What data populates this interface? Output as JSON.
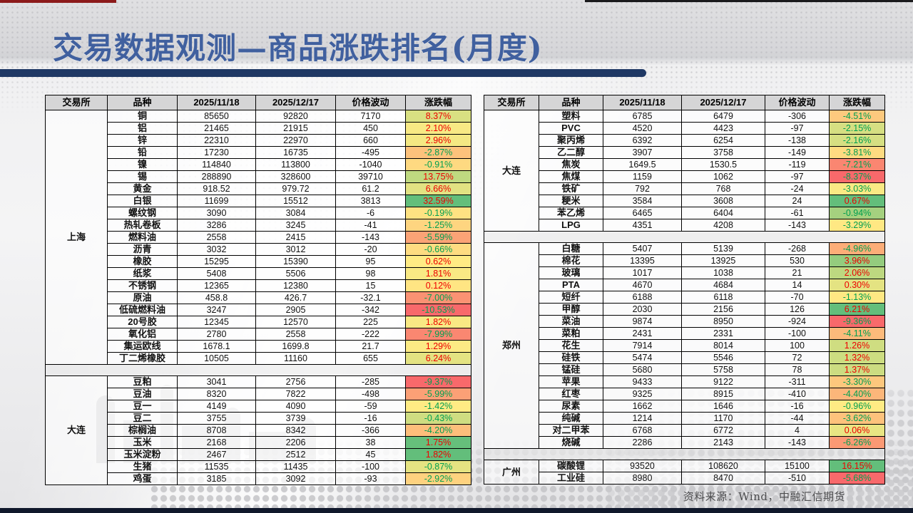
{
  "title": "交易数据观测—商品涨跌排名(月度)",
  "source_note": "资料来源：Wind，中融汇信期货",
  "colors": {
    "title_text": "#40609f",
    "title_bar": "#1f3864",
    "header_bg": "#d5d5d6",
    "scale_min_red": "#F8696B",
    "scale_mid_yellow": "#FFEB84",
    "scale_max_green": "#63BE7B",
    "up_text": "#ee0000",
    "down_text": "#00a050",
    "top_red_strip": "#8c1a1a",
    "top_black_strip": "#1b1b1d",
    "bottom_strip": "#10182b"
  },
  "tables": [
    {
      "name": "left-table",
      "headers": [
        "交易所",
        "品种",
        "2025/11/18",
        "2025/12/17",
        "价格波动",
        "涨跌幅"
      ],
      "sections": [
        {
          "exchange": "上海",
          "rows": [
            [
              "铜",
              "85650",
              "92820",
              "7170",
              "8.37%"
            ],
            [
              "铝",
              "21465",
              "21915",
              "450",
              "2.10%"
            ],
            [
              "锌",
              "22310",
              "22970",
              "660",
              "2.96%"
            ],
            [
              "铅",
              "17230",
              "16735",
              "-495",
              "-2.87%"
            ],
            [
              "镍",
              "114840",
              "113800",
              "-1040",
              "-0.91%"
            ],
            [
              "锡",
              "288890",
              "328600",
              "39710",
              "13.75%"
            ],
            [
              "黄金",
              "918.52",
              "979.72",
              "61.2",
              "6.66%"
            ],
            [
              "白银",
              "11699",
              "15512",
              "3813",
              "32.59%"
            ],
            [
              "螺纹钢",
              "3090",
              "3084",
              "-6",
              "-0.19%"
            ],
            [
              "热轧卷板",
              "3286",
              "3245",
              "-41",
              "-1.25%"
            ],
            [
              "燃料油",
              "2558",
              "2415",
              "-143",
              "-5.59%"
            ],
            [
              "沥青",
              "3032",
              "3012",
              "-20",
              "-0.66%"
            ],
            [
              "橡胶",
              "15295",
              "15390",
              "95",
              "0.62%"
            ],
            [
              "纸浆",
              "5408",
              "5506",
              "98",
              "1.81%"
            ],
            [
              "不锈钢",
              "12365",
              "12380",
              "15",
              "0.12%"
            ],
            [
              "原油",
              "458.8",
              "426.7",
              "-32.1",
              "-7.00%"
            ],
            [
              "低硫燃料油",
              "3247",
              "2905",
              "-342",
              "-10.53%"
            ],
            [
              "20号胶",
              "12345",
              "12570",
              "225",
              "1.82%"
            ],
            [
              "氧化铝",
              "2780",
              "2558",
              "-222",
              "-7.99%"
            ],
            [
              "集运欧线",
              "1678.1",
              "1699.8",
              "21.7",
              "1.29%"
            ],
            [
              "丁二烯橡胶",
              "10505",
              "11160",
              "655",
              "6.24%"
            ]
          ]
        },
        {
          "exchange": "大连",
          "rows": [
            [
              "豆粕",
              "3041",
              "2756",
              "-285",
              "-9.37%"
            ],
            [
              "豆油",
              "8320",
              "7822",
              "-498",
              "-5.99%"
            ],
            [
              "豆一",
              "4149",
              "4090",
              "-59",
              "-1.42%"
            ],
            [
              "豆二",
              "3755",
              "3739",
              "-16",
              "-0.43%"
            ],
            [
              "棕榈油",
              "8708",
              "8342",
              "-366",
              "-4.20%"
            ],
            [
              "玉米",
              "2168",
              "2206",
              "38",
              "1.75%"
            ],
            [
              "玉米淀粉",
              "2467",
              "2512",
              "45",
              "1.82%"
            ],
            [
              "生猪",
              "11535",
              "11435",
              "-100",
              "-0.87%"
            ],
            [
              "鸡蛋",
              "3185",
              "3092",
              "-93",
              "-2.92%"
            ]
          ]
        }
      ]
    },
    {
      "name": "right-table",
      "headers": [
        "交易所",
        "品种",
        "2025/11/18",
        "2025/12/17",
        "价格波动",
        "涨跌幅"
      ],
      "sections": [
        {
          "exchange": "大连",
          "rows": [
            [
              "塑料",
              "6785",
              "6479",
              "-306",
              "-4.51%"
            ],
            [
              "PVC",
              "4520",
              "4423",
              "-97",
              "-2.15%"
            ],
            [
              "聚丙烯",
              "6392",
              "6254",
              "-138",
              "-2.16%"
            ],
            [
              "乙二醇",
              "3907",
              "3758",
              "-149",
              "-3.81%"
            ],
            [
              "焦炭",
              "1649.5",
              "1530.5",
              "-119",
              "-7.21%"
            ],
            [
              "焦煤",
              "1159",
              "1062",
              "-97",
              "-8.37%"
            ],
            [
              "铁矿",
              "792",
              "768",
              "-24",
              "-3.03%"
            ],
            [
              "粳米",
              "3584",
              "3608",
              "24",
              "0.67%"
            ],
            [
              "苯乙烯",
              "6465",
              "6404",
              "-61",
              "-0.94%"
            ],
            [
              "LPG",
              "4351",
              "4208",
              "-143",
              "-3.29%"
            ]
          ]
        },
        {
          "exchange": "郑州",
          "rows": [
            [
              "白糖",
              "5407",
              "5139",
              "-268",
              "-4.96%"
            ],
            [
              "棉花",
              "13395",
              "13925",
              "530",
              "3.96%"
            ],
            [
              "玻璃",
              "1017",
              "1038",
              "21",
              "2.06%"
            ],
            [
              "PTA",
              "4670",
              "4684",
              "14",
              "0.30%"
            ],
            [
              "短纤",
              "6188",
              "6118",
              "-70",
              "-1.13%"
            ],
            [
              "甲醇",
              "2030",
              "2156",
              "126",
              "6.21%"
            ],
            [
              "菜油",
              "9874",
              "8950",
              "-924",
              "-9.36%"
            ],
            [
              "菜粕",
              "2431",
              "2331",
              "-100",
              "-4.11%"
            ],
            [
              "花生",
              "7914",
              "8014",
              "100",
              "1.26%"
            ],
            [
              "硅铁",
              "5474",
              "5546",
              "72",
              "1.32%"
            ],
            [
              "锰硅",
              "5680",
              "5758",
              "78",
              "1.37%"
            ],
            [
              "苹果",
              "9433",
              "9122",
              "-311",
              "-3.30%"
            ],
            [
              "红枣",
              "9325",
              "8915",
              "-410",
              "-4.40%"
            ],
            [
              "尿素",
              "1662",
              "1646",
              "-16",
              "-0.96%"
            ],
            [
              "纯碱",
              "1214",
              "1170",
              "-44",
              "-3.62%"
            ],
            [
              "对二甲苯",
              "6768",
              "6772",
              "4",
              "0.06%"
            ],
            [
              "烧碱",
              "2286",
              "2143",
              "-143",
              "-6.26%"
            ]
          ]
        },
        {
          "exchange": "广州",
          "rows": [
            [
              "碳酸锂",
              "93520",
              "108620",
              "15100",
              "16.15%"
            ],
            [
              "工业硅",
              "8980",
              "8470",
              "-510",
              "-5.68%"
            ]
          ]
        }
      ]
    }
  ]
}
